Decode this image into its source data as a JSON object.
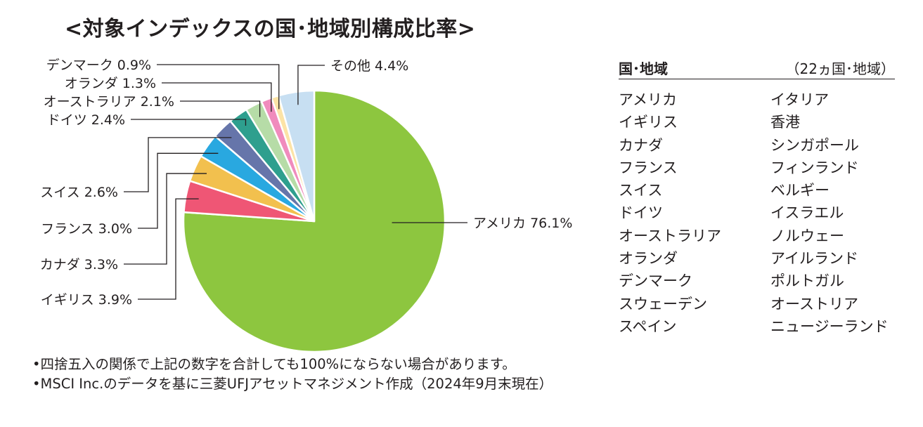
{
  "title": "<対象インデックスの国･地域別構成比率>",
  "chart_data": {
    "type": "pie",
    "slices": [
      {
        "name": "アメリカ",
        "label": "アメリカ 76.1%",
        "value": 76.1,
        "color": "#8dc63f"
      },
      {
        "name": "イギリス",
        "label": "イギリス 3.9%",
        "value": 3.9,
        "color": "#ef5675"
      },
      {
        "name": "カナダ",
        "label": "カナダ 3.3%",
        "value": 3.3,
        "color": "#f2c04e"
      },
      {
        "name": "フランス",
        "label": "フランス 3.0%",
        "value": 3.0,
        "color": "#29a8e0"
      },
      {
        "name": "スイス",
        "label": "スイス 2.6%",
        "value": 2.6,
        "color": "#6675aa"
      },
      {
        "name": "ドイツ",
        "label": "ドイツ 2.4%",
        "value": 2.4,
        "color": "#2e9f8e"
      },
      {
        "name": "オーストラリア",
        "label": "オーストラリア 2.1%",
        "value": 2.1,
        "color": "#b6dca7"
      },
      {
        "name": "オランダ",
        "label": "オランダ 1.3%",
        "value": 1.3,
        "color": "#f08bbd"
      },
      {
        "name": "デンマーク",
        "label": "デンマーク 0.9%",
        "value": 0.9,
        "color": "#fce3a6"
      },
      {
        "name": "その他",
        "label": "その他 4.4%",
        "value": 4.4,
        "color": "#c7dff2"
      }
    ]
  },
  "panel": {
    "header_label": "国･地域",
    "header_count": "（22ヵ国･地域）",
    "countries_left": [
      "アメリカ",
      "イギリス",
      "カナダ",
      "フランス",
      "スイス",
      "ドイツ",
      "オーストラリア",
      "オランダ",
      "デンマーク",
      "スウェーデン",
      "スペイン"
    ],
    "countries_right": [
      "イタリア",
      "香港",
      "シンガポール",
      "フィンランド",
      "ベルギー",
      "イスラエル",
      "ノルウェー",
      "アイルランド",
      "ポルトガル",
      "オーストリア",
      "ニュージーランド"
    ]
  },
  "notes": [
    "•四捨五入の関係で上記の数字を合計しても100%にならない場合があります。",
    "•MSCI Inc.のデータを基に三菱UFJアセットマネジメント作成（2024年9月末現在）"
  ]
}
